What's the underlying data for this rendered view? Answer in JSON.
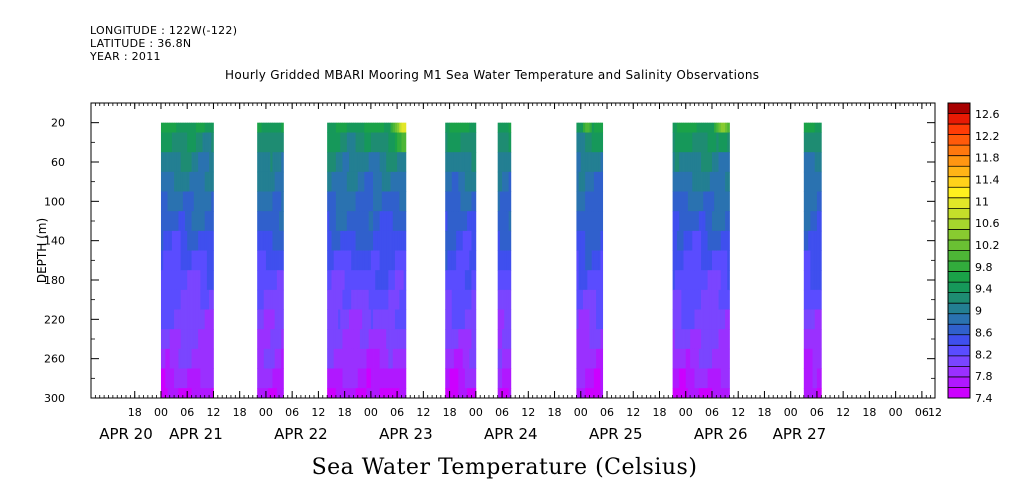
{
  "header": {
    "longitude": "LONGITUDE : 122W(-122)",
    "latitude": "LATITUDE : 36.8N",
    "year": "YEAR : 2011"
  },
  "footer_label": "Sea Water Temperature (Celsius)",
  "chart_data": {
    "type": "heatmap",
    "title": "Hourly Gridded MBARI Mooring M1 Sea Water Temperature and Salinity Observations",
    "xlabel": "",
    "ylabel": "DEPTH (m)",
    "ylim": [
      300,
      0
    ],
    "y_reversed": true,
    "y_ticks": [
      20,
      60,
      100,
      140,
      180,
      220,
      260,
      300
    ],
    "x_range_hours": [
      -16,
      177
    ],
    "x_hour_ticks": [
      {
        "h": -6,
        "label": "18"
      },
      {
        "h": 0,
        "label": "00"
      },
      {
        "h": 6,
        "label": "06"
      },
      {
        "h": 12,
        "label": "12"
      },
      {
        "h": 18,
        "label": "18"
      },
      {
        "h": 24,
        "label": "00"
      },
      {
        "h": 30,
        "label": "06"
      },
      {
        "h": 36,
        "label": "12"
      },
      {
        "h": 42,
        "label": "18"
      },
      {
        "h": 48,
        "label": "00"
      },
      {
        "h": 54,
        "label": "06"
      },
      {
        "h": 60,
        "label": "12"
      },
      {
        "h": 66,
        "label": "18"
      },
      {
        "h": 72,
        "label": "00"
      },
      {
        "h": 78,
        "label": "06"
      },
      {
        "h": 84,
        "label": "12"
      },
      {
        "h": 90,
        "label": "18"
      },
      {
        "h": 96,
        "label": "00"
      },
      {
        "h": 102,
        "label": "06"
      },
      {
        "h": 108,
        "label": "12"
      },
      {
        "h": 114,
        "label": "18"
      },
      {
        "h": 120,
        "label": "00"
      },
      {
        "h": 126,
        "label": "06"
      },
      {
        "h": 132,
        "label": "12"
      },
      {
        "h": 138,
        "label": "18"
      },
      {
        "h": 144,
        "label": "00"
      },
      {
        "h": 150,
        "label": "06"
      },
      {
        "h": 156,
        "label": "12"
      },
      {
        "h": 162,
        "label": "18"
      },
      {
        "h": 168,
        "label": "00"
      },
      {
        "h": 174,
        "label": "06"
      },
      {
        "h": 177,
        "label": "12"
      }
    ],
    "x_date_labels": [
      {
        "h": -8,
        "label": "APR 20"
      },
      {
        "h": 8,
        "label": "APR 21"
      },
      {
        "h": 32,
        "label": "APR 22"
      },
      {
        "h": 56,
        "label": "APR 23"
      },
      {
        "h": 80,
        "label": "APR 24"
      },
      {
        "h": 104,
        "label": "APR 25"
      },
      {
        "h": 128,
        "label": "APR 26"
      },
      {
        "h": 146,
        "label": "APR 27"
      }
    ],
    "depth_rows": [
      20,
      40,
      60,
      80,
      100,
      120,
      140,
      160,
      180,
      200,
      220,
      240,
      260,
      280,
      300
    ],
    "base_profile_celsius": [
      9.6,
      9.35,
      9.1,
      8.95,
      8.8,
      8.7,
      8.55,
      8.42,
      8.3,
      8.2,
      8.1,
      8.0,
      7.9,
      7.75,
      7.6
    ],
    "data_segments": [
      {
        "start_h": 0,
        "end_h": 12
      },
      {
        "start_h": 22,
        "end_h": 28
      },
      {
        "start_h": 38,
        "end_h": 56
      },
      {
        "start_h": 65,
        "end_h": 72
      },
      {
        "start_h": 77,
        "end_h": 80
      },
      {
        "start_h": 95,
        "end_h": 101
      },
      {
        "start_h": 117,
        "end_h": 130
      },
      {
        "start_h": 147,
        "end_h": 151
      }
    ],
    "warm_spots_celsius": [
      {
        "h": 55.5,
        "depth": 20,
        "value": 11.2
      },
      {
        "h": 128.5,
        "depth": 20,
        "value": 10.7
      },
      {
        "h": 97.5,
        "depth": 20,
        "value": 10.2
      }
    ],
    "colorbar": {
      "labels": [
        "12.6",
        "12.2",
        "11.8",
        "11.4",
        "11",
        "10.6",
        "10.2",
        "9.8",
        "9.4",
        "9",
        "8.6",
        "8.2",
        "7.8",
        "7.4"
      ],
      "range": [
        7.4,
        12.8
      ],
      "step": 0.2,
      "colors": [
        "#cc00ff",
        "#b018ff",
        "#9a30ff",
        "#7a45ff",
        "#5a4cff",
        "#3f4fee",
        "#3060cc",
        "#2a72b0",
        "#237f92",
        "#1e8c72",
        "#16985a",
        "#1aa248",
        "#32ac3c",
        "#4db636",
        "#6ac033",
        "#88cb30",
        "#a6d52d",
        "#c4df2a",
        "#e2e728",
        "#fff01e",
        "#ffd21a",
        "#ffb416",
        "#ff9612",
        "#ff780e",
        "#ff5a0a",
        "#ff3c06",
        "#e81a04",
        "#a80000"
      ]
    }
  }
}
